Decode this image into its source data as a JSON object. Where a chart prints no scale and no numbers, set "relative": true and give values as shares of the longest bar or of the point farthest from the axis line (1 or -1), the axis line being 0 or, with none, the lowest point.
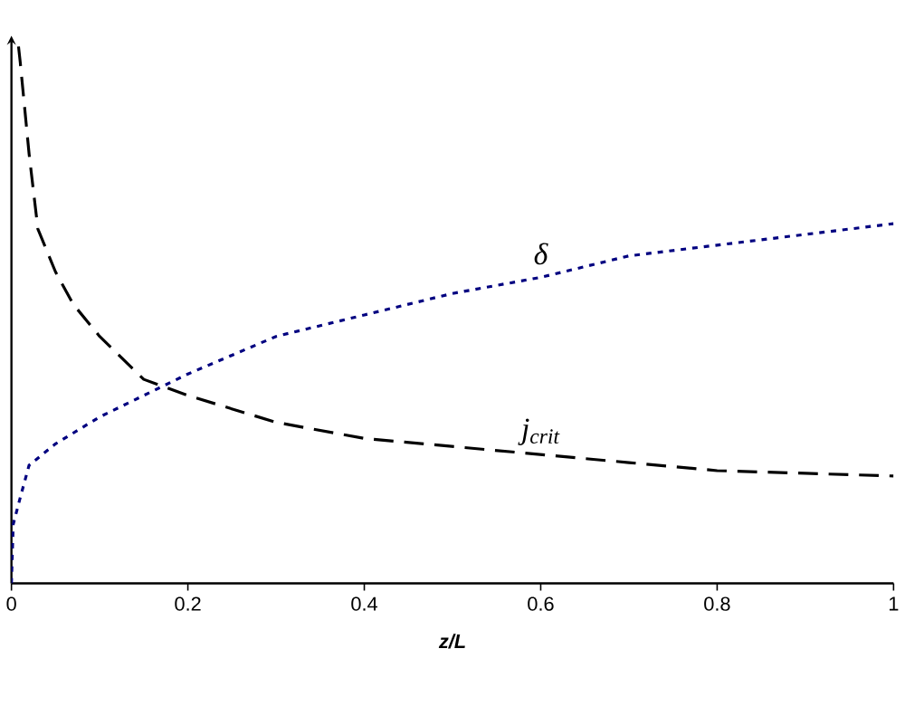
{
  "chart_data": {
    "type": "line",
    "relative": true,
    "xlabel": "z/L",
    "xlim": [
      0,
      1
    ],
    "xticks": [
      0,
      0.2,
      0.4,
      0.6,
      0.8,
      1
    ],
    "tick_labels": "x",
    "grid": false,
    "marker": "none",
    "series": [
      {
        "name": "δ",
        "color": "#000080",
        "line_style": "dotted",
        "x": [
          0,
          0.002,
          0.01,
          0.02,
          0.05,
          0.1,
          0.15,
          0.2,
          0.3,
          0.4,
          0.5,
          0.6,
          0.7,
          0.8,
          0.9,
          1.0
        ],
        "values": [
          0,
          0.11,
          0.16,
          0.22,
          0.26,
          0.31,
          0.35,
          0.39,
          0.46,
          0.5,
          0.54,
          0.57,
          0.61,
          0.63,
          0.65,
          0.67
        ]
      },
      {
        "name": "j$_{crit}$",
        "color": "#000000",
        "line_style": "dashed",
        "x": [
          0.008,
          0.01,
          0.02,
          0.03,
          0.05,
          0.07,
          0.1,
          0.15,
          0.2,
          0.3,
          0.4,
          0.5,
          0.6,
          0.7,
          0.8,
          0.9,
          1.0
        ],
        "values": [
          1.0,
          0.97,
          0.8,
          0.66,
          0.58,
          0.52,
          0.46,
          0.38,
          0.35,
          0.3,
          0.27,
          0.255,
          0.24,
          0.225,
          0.21,
          0.205,
          0.2
        ]
      }
    ]
  }
}
